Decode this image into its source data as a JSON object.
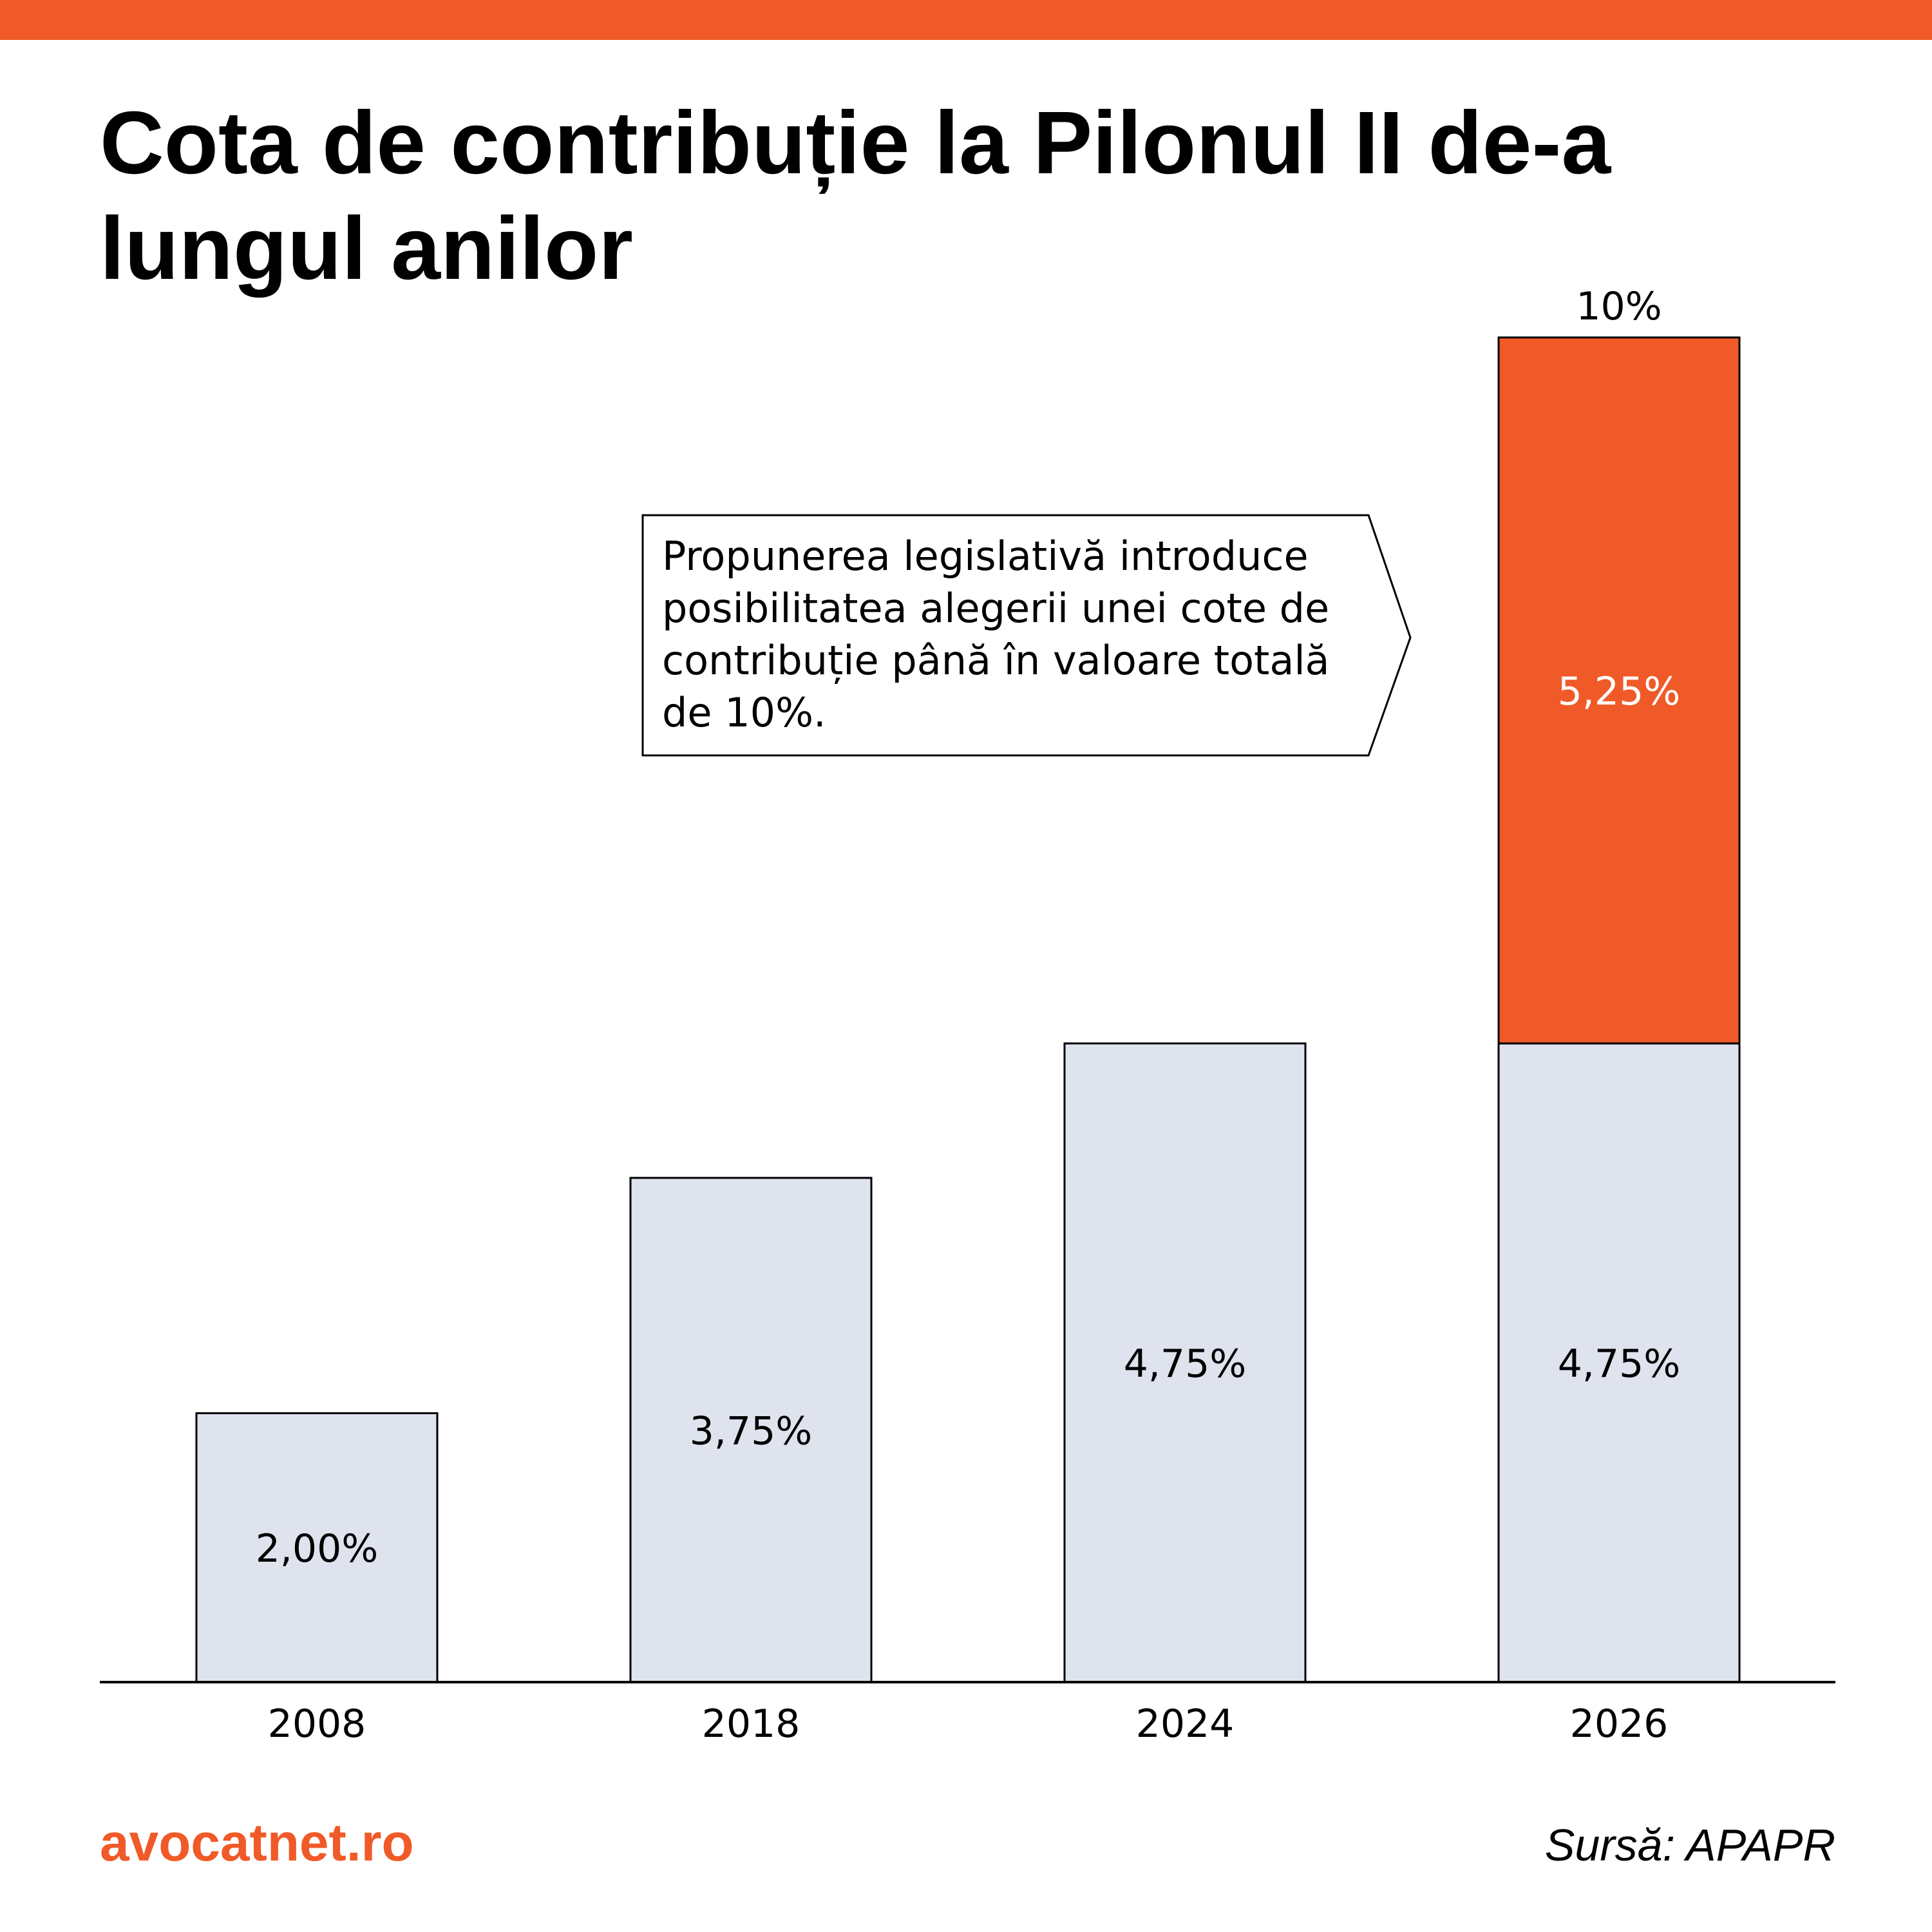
{
  "title": "Cota de contribuție la Pilonul II de-a lungul anilor",
  "brand": "avocatnet.ro",
  "source": "Sursă: APAPR",
  "colors": {
    "accent": "#F05A28",
    "base_bar": "#DFE3EE",
    "outline": "#000000"
  },
  "annotation": {
    "lines": [
      "Propunerea legislativă introduce",
      "posibilitatea alegerii unei cote de",
      "contribuție până în valoare totală",
      "de 10%."
    ]
  },
  "chart_data": {
    "type": "bar",
    "stacked": true,
    "categories": [
      "2008",
      "2018",
      "2024",
      "2026"
    ],
    "series": [
      {
        "values": [
          2.0,
          3.75,
          4.75,
          4.75
        ],
        "labels": [
          "2,00%",
          "3,75%",
          "4,75%",
          "4,75%"
        ],
        "color": "#DFE3EE"
      },
      {
        "values": [
          0,
          0,
          0,
          5.25
        ],
        "labels": [
          "",
          "",
          "",
          "5,25%"
        ],
        "color": "#F05A28"
      }
    ],
    "totals": [
      {
        "category": "2026",
        "value": 10,
        "label": "10%"
      }
    ],
    "ylim": [
      0,
      10
    ],
    "grid": false,
    "legend": "none"
  }
}
